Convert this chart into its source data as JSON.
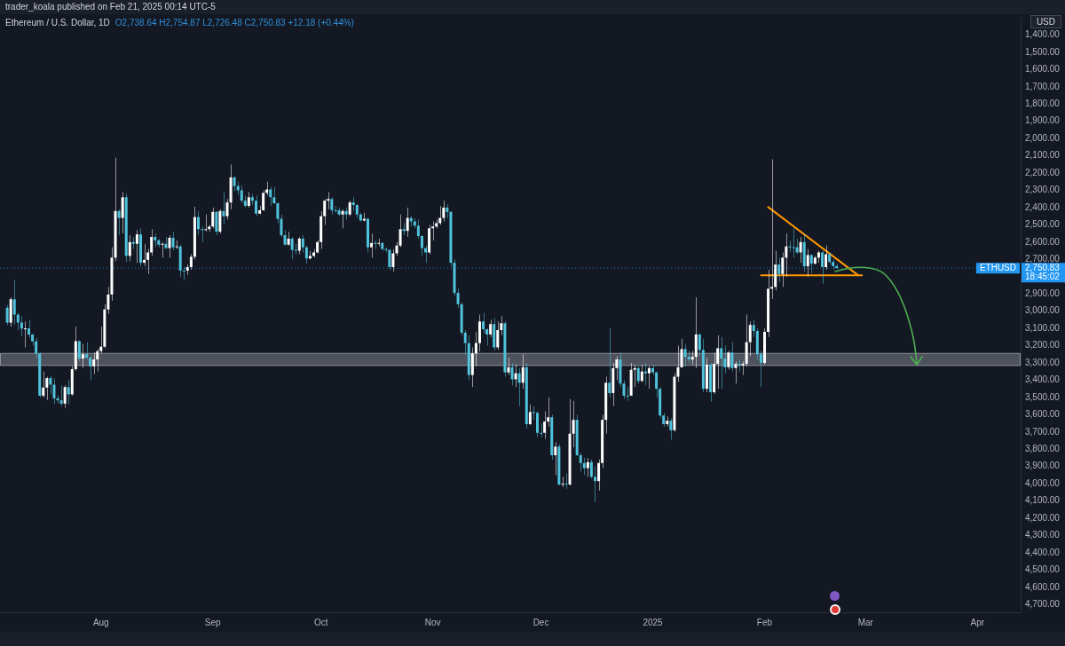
{
  "chart_data": {
    "type": "candlestick",
    "title": "Ethereum / U.S. Dollar, 1D",
    "subtitle": "O2,738.64 H2,754.87 L2,726.48 C2,750.83 +12.18 (+0.44%)",
    "ylabel": "USD",
    "annotations": [
      "trader_koala published on Feb 21, 2025 00:14 UTC-5",
      "2,750.83",
      "18:45:02"
    ],
    "x": [
      "2024-07-06",
      "2024-07-07",
      "2024-07-08",
      "2024-07-09",
      "2024-07-10",
      "2024-07-11",
      "2024-07-12",
      "2024-07-13",
      "2024-07-14",
      "2024-07-15",
      "2024-07-16",
      "2024-07-17",
      "2024-07-18",
      "2024-07-19",
      "2024-07-20",
      "2024-07-21",
      "2024-07-22",
      "2024-07-23",
      "2024-07-24",
      "2024-07-25",
      "2024-07-26",
      "2024-07-27",
      "2024-07-28",
      "2024-07-29",
      "2024-07-30",
      "2024-07-31",
      "2024-08-01",
      "2024-08-02",
      "2024-08-03",
      "2024-08-04",
      "2024-08-05",
      "2024-08-06",
      "2024-08-07",
      "2024-08-08",
      "2024-08-09",
      "2024-08-10",
      "2024-08-11",
      "2024-08-12",
      "2024-08-13",
      "2024-08-14",
      "2024-08-15",
      "2024-08-16",
      "2024-08-17",
      "2024-08-18",
      "2024-08-19",
      "2024-08-20",
      "2024-08-21",
      "2024-08-22",
      "2024-08-23",
      "2024-08-24",
      "2024-08-25",
      "2024-08-26",
      "2024-08-27",
      "2024-08-28",
      "2024-08-29",
      "2024-08-30",
      "2024-08-31",
      "2024-09-01",
      "2024-09-02",
      "2024-09-03",
      "2024-09-04",
      "2024-09-05",
      "2024-09-06",
      "2024-09-07",
      "2024-09-08",
      "2024-09-09",
      "2024-09-10",
      "2024-09-11",
      "2024-09-12",
      "2024-09-13",
      "2024-09-14",
      "2024-09-15",
      "2024-09-16",
      "2024-09-17",
      "2024-09-18",
      "2024-09-19",
      "2024-09-20",
      "2024-09-21",
      "2024-09-22",
      "2024-09-23",
      "2024-09-24",
      "2024-09-25",
      "2024-09-26",
      "2024-09-27",
      "2024-09-28",
      "2024-09-29",
      "2024-09-30",
      "2024-10-01",
      "2024-10-02",
      "2024-10-03",
      "2024-10-04",
      "2024-10-05",
      "2024-10-06",
      "2024-10-07",
      "2024-10-08",
      "2024-10-09",
      "2024-10-10",
      "2024-10-11",
      "2024-10-12",
      "2024-10-13",
      "2024-10-14",
      "2024-10-15",
      "2024-10-16",
      "2024-10-17",
      "2024-10-18",
      "2024-10-19",
      "2024-10-20",
      "2024-10-21",
      "2024-10-22",
      "2024-10-23",
      "2024-10-24",
      "2024-10-25",
      "2024-10-26",
      "2024-10-27",
      "2024-10-28",
      "2024-10-29",
      "2024-10-30",
      "2024-10-31",
      "2024-11-01",
      "2024-11-02",
      "2024-11-03",
      "2024-11-04",
      "2024-11-05",
      "2024-11-06",
      "2024-11-07",
      "2024-11-08",
      "2024-11-09",
      "2024-11-10",
      "2024-11-11",
      "2024-11-12",
      "2024-11-13",
      "2024-11-14",
      "2024-11-15",
      "2024-11-16",
      "2024-11-17",
      "2024-11-18",
      "2024-11-19",
      "2024-11-20",
      "2024-11-21",
      "2024-11-22",
      "2024-11-23",
      "2024-11-24",
      "2024-11-25",
      "2024-11-26",
      "2024-11-27",
      "2024-11-28",
      "2024-11-29",
      "2024-11-30",
      "2024-12-01",
      "2024-12-02",
      "2024-12-03",
      "2024-12-04",
      "2024-12-05",
      "2024-12-06",
      "2024-12-07",
      "2024-12-08",
      "2024-12-09",
      "2024-12-10",
      "2024-12-11",
      "2024-12-12",
      "2024-12-13",
      "2024-12-14",
      "2024-12-15",
      "2024-12-16",
      "2024-12-17",
      "2024-12-18",
      "2024-12-19",
      "2024-12-20",
      "2024-12-21",
      "2024-12-22",
      "2024-12-23",
      "2024-12-24",
      "2024-12-25",
      "2024-12-26",
      "2024-12-27",
      "2024-12-28",
      "2024-12-29",
      "2024-12-30",
      "2024-12-31",
      "2025-01-01",
      "2025-01-02",
      "2025-01-03",
      "2025-01-04",
      "2025-01-05",
      "2025-01-06",
      "2025-01-07",
      "2025-01-08",
      "2025-01-09",
      "2025-01-10",
      "2025-01-11",
      "2025-01-12",
      "2025-01-13",
      "2025-01-14",
      "2025-01-15",
      "2025-01-16",
      "2025-01-17",
      "2025-01-18",
      "2025-01-19",
      "2025-01-20",
      "2025-01-21",
      "2025-01-22",
      "2025-01-23",
      "2025-01-24",
      "2025-01-25",
      "2025-01-26",
      "2025-01-27",
      "2025-01-28",
      "2025-01-29",
      "2025-01-30",
      "2025-01-31",
      "2025-02-01",
      "2025-02-02",
      "2025-02-03",
      "2025-02-04",
      "2025-02-05",
      "2025-02-06",
      "2025-02-07",
      "2025-02-08",
      "2025-02-09",
      "2025-02-10",
      "2025-02-11",
      "2025-02-12",
      "2025-02-13",
      "2025-02-14",
      "2025-02-15",
      "2025-02-16",
      "2025-02-17",
      "2025-02-18",
      "2025-02-19",
      "2025-02-20",
      "2025-02-21"
    ],
    "ohlc": [
      [
        2980,
        3080,
        2965,
        3067
      ],
      [
        3067,
        3090,
        2920,
        2931
      ],
      [
        2931,
        3080,
        2820,
        3020
      ],
      [
        3020,
        3110,
        3010,
        3066
      ],
      [
        3066,
        3145,
        3030,
        3101
      ],
      [
        3101,
        3210,
        3060,
        3100
      ],
      [
        3100,
        3155,
        3050,
        3136
      ],
      [
        3136,
        3200,
        3130,
        3175
      ],
      [
        3175,
        3275,
        3155,
        3245
      ],
      [
        3245,
        3500,
        3240,
        3490
      ],
      [
        3490,
        3500,
        3350,
        3443
      ],
      [
        3443,
        3515,
        3380,
        3388
      ],
      [
        3388,
        3480,
        3375,
        3426
      ],
      [
        3426,
        3540,
        3390,
        3505
      ],
      [
        3505,
        3535,
        3490,
        3517
      ],
      [
        3517,
        3550,
        3430,
        3536
      ],
      [
        3536,
        3560,
        3430,
        3440
      ],
      [
        3440,
        3540,
        3400,
        3482
      ],
      [
        3482,
        3490,
        3320,
        3336
      ],
      [
        3336,
        3345,
        3090,
        3174
      ],
      [
        3174,
        3290,
        3170,
        3275
      ],
      [
        3275,
        3330,
        3190,
        3250
      ],
      [
        3250,
        3280,
        3180,
        3270
      ],
      [
        3270,
        3400,
        3260,
        3320
      ],
      [
        3320,
        3365,
        3240,
        3280
      ],
      [
        3280,
        3350,
        3220,
        3232
      ],
      [
        3232,
        3245,
        3090,
        3206
      ],
      [
        3206,
        3215,
        2960,
        2990
      ],
      [
        2990,
        3015,
        2860,
        2904
      ],
      [
        2904,
        2940,
        2630,
        2690
      ],
      [
        2690,
        2710,
        2111,
        2420
      ],
      [
        2420,
        2560,
        2410,
        2460
      ],
      [
        2460,
        2550,
        2310,
        2340
      ],
      [
        2340,
        2715,
        2320,
        2680
      ],
      [
        2680,
        2710,
        2560,
        2600
      ],
      [
        2600,
        2640,
        2570,
        2610
      ],
      [
        2610,
        2720,
        2530,
        2555
      ],
      [
        2555,
        2740,
        2520,
        2720
      ],
      [
        2720,
        2740,
        2610,
        2703
      ],
      [
        2703,
        2785,
        2640,
        2660
      ],
      [
        2660,
        2680,
        2525,
        2570
      ],
      [
        2570,
        2630,
        2550,
        2590
      ],
      [
        2590,
        2630,
        2580,
        2615
      ],
      [
        2615,
        2690,
        2600,
        2610
      ],
      [
        2610,
        2640,
        2570,
        2635
      ],
      [
        2635,
        2690,
        2560,
        2575
      ],
      [
        2575,
        2650,
        2540,
        2630
      ],
      [
        2630,
        2640,
        2590,
        2625
      ],
      [
        2625,
        2800,
        2615,
        2765
      ],
      [
        2765,
        2820,
        2745,
        2765
      ],
      [
        2765,
        2790,
        2730,
        2745
      ],
      [
        2745,
        2760,
        2670,
        2685
      ],
      [
        2685,
        2700,
        2395,
        2455
      ],
      [
        2455,
        2560,
        2420,
        2525
      ],
      [
        2525,
        2600,
        2510,
        2530
      ],
      [
        2530,
        2540,
        2440,
        2525
      ],
      [
        2525,
        2540,
        2500,
        2510
      ],
      [
        2510,
        2520,
        2400,
        2425
      ],
      [
        2425,
        2560,
        2420,
        2540
      ],
      [
        2540,
        2550,
        2410,
        2420
      ],
      [
        2420,
        2495,
        2310,
        2450
      ],
      [
        2450,
        2470,
        2350,
        2370
      ],
      [
        2370,
        2410,
        2150,
        2225
      ],
      [
        2225,
        2305,
        2220,
        2275
      ],
      [
        2275,
        2325,
        2250,
        2300
      ],
      [
        2300,
        2375,
        2270,
        2360
      ],
      [
        2360,
        2400,
        2330,
        2390
      ],
      [
        2390,
        2400,
        2310,
        2340
      ],
      [
        2340,
        2385,
        2320,
        2360
      ],
      [
        2360,
        2450,
        2330,
        2435
      ],
      [
        2435,
        2440,
        2390,
        2415
      ],
      [
        2415,
        2420,
        2300,
        2315
      ],
      [
        2315,
        2330,
        2250,
        2295
      ],
      [
        2295,
        2390,
        2280,
        2340
      ],
      [
        2340,
        2380,
        2280,
        2375
      ],
      [
        2375,
        2490,
        2370,
        2465
      ],
      [
        2465,
        2570,
        2440,
        2560
      ],
      [
        2560,
        2620,
        2530,
        2615
      ],
      [
        2615,
        2620,
        2540,
        2580
      ],
      [
        2580,
        2700,
        2570,
        2645
      ],
      [
        2645,
        2670,
        2610,
        2650
      ],
      [
        2650,
        2670,
        2570,
        2580
      ],
      [
        2580,
        2660,
        2560,
        2630
      ],
      [
        2630,
        2725,
        2620,
        2695
      ],
      [
        2695,
        2700,
        2650,
        2680
      ],
      [
        2680,
        2690,
        2640,
        2660
      ],
      [
        2660,
        2665,
        2590,
        2600
      ],
      [
        2600,
        2640,
        2420,
        2450
      ],
      [
        2450,
        2500,
        2350,
        2360
      ],
      [
        2360,
        2410,
        2310,
        2350
      ],
      [
        2350,
        2440,
        2340,
        2415
      ],
      [
        2415,
        2430,
        2390,
        2415
      ],
      [
        2415,
        2450,
        2400,
        2440
      ],
      [
        2440,
        2520,
        2410,
        2420
      ],
      [
        2420,
        2470,
        2400,
        2440
      ],
      [
        2440,
        2450,
        2360,
        2370
      ],
      [
        2370,
        2420,
        2340,
        2385
      ],
      [
        2385,
        2460,
        2380,
        2440
      ],
      [
        2440,
        2480,
        2430,
        2475
      ],
      [
        2475,
        2480,
        2430,
        2465
      ],
      [
        2465,
        2660,
        2460,
        2630
      ],
      [
        2630,
        2690,
        2550,
        2605
      ],
      [
        2605,
        2640,
        2590,
        2610
      ],
      [
        2610,
        2625,
        2580,
        2605
      ],
      [
        2605,
        2650,
        2600,
        2640
      ],
      [
        2640,
        2660,
        2630,
        2645
      ],
      [
        2645,
        2760,
        2640,
        2745
      ],
      [
        2745,
        2770,
        2640,
        2665
      ],
      [
        2665,
        2680,
        2600,
        2620
      ],
      [
        2620,
        2630,
        2440,
        2525
      ],
      [
        2525,
        2560,
        2490,
        2535
      ],
      [
        2535,
        2570,
        2400,
        2460
      ],
      [
        2460,
        2510,
        2450,
        2480
      ],
      [
        2480,
        2520,
        2460,
        2505
      ],
      [
        2505,
        2580,
        2470,
        2565
      ],
      [
        2565,
        2680,
        2560,
        2635
      ],
      [
        2635,
        2720,
        2620,
        2660
      ],
      [
        2660,
        2670,
        2500,
        2520
      ],
      [
        2520,
        2590,
        2480,
        2510
      ],
      [
        2510,
        2520,
        2470,
        2490
      ],
      [
        2490,
        2500,
        2390,
        2460
      ],
      [
        2460,
        2480,
        2360,
        2400
      ],
      [
        2400,
        2460,
        2380,
        2425
      ],
      [
        2425,
        2740,
        2420,
        2720
      ],
      [
        2720,
        2910,
        2700,
        2895
      ],
      [
        2895,
        2980,
        2870,
        2960
      ],
      [
        2960,
        3140,
        2950,
        3125
      ],
      [
        3125,
        3250,
        3110,
        3185
      ],
      [
        3185,
        3400,
        3140,
        3370
      ],
      [
        3370,
        3440,
        3210,
        3245
      ],
      [
        3245,
        3320,
        3120,
        3185
      ],
      [
        3185,
        3235,
        3020,
        3060
      ],
      [
        3060,
        3130,
        3010,
        3105
      ],
      [
        3105,
        3200,
        3100,
        3135
      ],
      [
        3135,
        3150,
        3050,
        3075
      ],
      [
        3075,
        3230,
        3040,
        3210
      ],
      [
        3210,
        3225,
        3060,
        3110
      ],
      [
        3110,
        3140,
        3030,
        3070
      ],
      [
        3070,
        3380,
        3060,
        3355
      ],
      [
        3355,
        3370,
        3270,
        3325
      ],
      [
        3325,
        3430,
        3300,
        3395
      ],
      [
        3395,
        3440,
        3310,
        3360
      ],
      [
        3360,
        3550,
        3330,
        3415
      ],
      [
        3415,
        3450,
        3250,
        3325
      ],
      [
        3325,
        3680,
        3300,
        3655
      ],
      [
        3655,
        3660,
        3540,
        3585
      ],
      [
        3585,
        3630,
        3550,
        3590
      ],
      [
        3590,
        3730,
        3580,
        3705
      ],
      [
        3705,
        3730,
        3650,
        3705
      ],
      [
        3705,
        3740,
        3580,
        3640
      ],
      [
        3640,
        3670,
        3500,
        3615
      ],
      [
        3615,
        3860,
        3600,
        3835
      ],
      [
        3835,
        3950,
        3760,
        3785
      ],
      [
        3785,
        4010,
        3770,
        4005
      ],
      [
        4005,
        4020,
        3960,
        4000
      ],
      [
        4000,
        4030,
        3940,
        4005
      ],
      [
        4005,
        4010,
        3510,
        3710
      ],
      [
        3710,
        3790,
        3520,
        3630
      ],
      [
        3630,
        3840,
        3600,
        3835
      ],
      [
        3835,
        3930,
        3820,
        3880
      ],
      [
        3880,
        3950,
        3850,
        3910
      ],
      [
        3910,
        3960,
        3850,
        3875
      ],
      [
        3875,
        3970,
        3860,
        3960
      ],
      [
        3960,
        4107,
        3900,
        3985
      ],
      [
        3985,
        4040,
        3860,
        3880
      ],
      [
        3880,
        3910,
        3600,
        3630
      ],
      [
        3630,
        3710,
        3380,
        3415
      ],
      [
        3415,
        3500,
        3100,
        3475
      ],
      [
        3475,
        3550,
        3300,
        3330
      ],
      [
        3330,
        3400,
        3260,
        3280
      ],
      [
        3280,
        3440,
        3240,
        3420
      ],
      [
        3420,
        3510,
        3400,
        3490
      ],
      [
        3490,
        3520,
        3440,
        3490
      ],
      [
        3490,
        3490,
        3300,
        3340
      ],
      [
        3340,
        3440,
        3310,
        3330
      ],
      [
        3330,
        3420,
        3320,
        3405
      ],
      [
        3405,
        3410,
        3310,
        3350
      ],
      [
        3350,
        3430,
        3300,
        3360
      ],
      [
        3360,
        3450,
        3320,
        3330
      ],
      [
        3330,
        3370,
        3310,
        3355
      ],
      [
        3355,
        3500,
        3350,
        3450
      ],
      [
        3450,
        3620,
        3440,
        3605
      ],
      [
        3605,
        3670,
        3590,
        3655
      ],
      [
        3655,
        3670,
        3610,
        3635
      ],
      [
        3635,
        3745,
        3620,
        3690
      ],
      [
        3690,
        3700,
        3360,
        3380
      ],
      [
        3380,
        3410,
        3200,
        3325
      ],
      [
        3325,
        3330,
        3160,
        3220
      ],
      [
        3220,
        3320,
        3190,
        3265
      ],
      [
        3265,
        3300,
        3230,
        3280
      ],
      [
        3280,
        3310,
        3230,
        3265
      ],
      [
        3265,
        3330,
        2920,
        3135
      ],
      [
        3135,
        3260,
        3130,
        3225
      ],
      [
        3225,
        3470,
        3160,
        3450
      ],
      [
        3450,
        3470,
        3270,
        3310
      ],
      [
        3310,
        3525,
        3300,
        3470
      ],
      [
        3470,
        3480,
        3240,
        3305
      ],
      [
        3305,
        3450,
        3140,
        3215
      ],
      [
        3215,
        3450,
        3150,
        3275
      ],
      [
        3275,
        3360,
        3200,
        3325
      ],
      [
        3325,
        3340,
        3230,
        3240
      ],
      [
        3240,
        3350,
        3180,
        3330
      ],
      [
        3330,
        3420,
        3290,
        3305
      ],
      [
        3305,
        3350,
        3280,
        3315
      ],
      [
        3315,
        3370,
        3290,
        3305
      ],
      [
        3305,
        3320,
        3020,
        3180
      ],
      [
        3180,
        3260,
        3060,
        3080
      ],
      [
        3080,
        3150,
        3050,
        3115
      ],
      [
        3115,
        3280,
        3100,
        3250
      ],
      [
        3250,
        3440,
        3230,
        3300
      ],
      [
        3300,
        3310,
        3100,
        3120
      ],
      [
        3120,
        3150,
        2760,
        2870
      ],
      [
        2870,
        2930,
        2120,
        2860
      ],
      [
        2860,
        2880,
        2650,
        2730
      ],
      [
        2730,
        2830,
        2690,
        2785
      ],
      [
        2785,
        2860,
        2660,
        2690
      ],
      [
        2690,
        2800,
        2550,
        2625
      ],
      [
        2625,
        2660,
        2590,
        2630
      ],
      [
        2630,
        2690,
        2520,
        2630
      ],
      [
        2630,
        2670,
        2580,
        2660
      ],
      [
        2660,
        2720,
        2570,
        2600
      ],
      [
        2600,
        2770,
        2550,
        2740
      ],
      [
        2740,
        2800,
        2640,
        2675
      ],
      [
        2675,
        2780,
        2670,
        2725
      ],
      [
        2725,
        2730,
        2680,
        2690
      ],
      [
        2690,
        2720,
        2650,
        2660
      ],
      [
        2660,
        2840,
        2650,
        2745
      ],
      [
        2745,
        2760,
        2620,
        2670
      ],
      [
        2670,
        2730,
        2660,
        2715
      ],
      [
        2715,
        2760,
        2700,
        2739
      ],
      [
        2738.64,
        2754.87,
        2726.48,
        2750.83
      ]
    ],
    "colors": [
      "#4fc3dc",
      "#ffffff",
      "#4fc3dc",
      "#4fc3dc",
      "#4fc3dc",
      "#ffffff",
      "#4fc3dc",
      "#4fc3dc",
      "#4fc3dc",
      "#4fc3dc",
      "#ffffff",
      "#ffffff",
      "#4fc3dc",
      "#4fc3dc",
      "#4fc3dc",
      "#4fc3dc",
      "#ffffff",
      "#4fc3dc",
      "#ffffff",
      "#ffffff",
      "#4fc3dc",
      "#ffffff",
      "#4fc3dc",
      "#4fc3dc",
      "#ffffff",
      "#ffffff",
      "#ffffff",
      "#ffffff",
      "#ffffff",
      "#ffffff",
      "#ffffff",
      "#4fc3dc",
      "#ffffff",
      "#4fc3dc",
      "#ffffff",
      "#4fc3dc",
      "#ffffff",
      "#4fc3dc",
      "#ffffff",
      "#ffffff",
      "#ffffff",
      "#4fc3dc",
      "#4fc3dc",
      "#ffffff",
      "#4fc3dc",
      "#ffffff",
      "#4fc3dc",
      "#ffffff",
      "#4fc3dc",
      "#4fc3dc",
      "#ffffff",
      "#ffffff",
      "#ffffff",
      "#4fc3dc",
      "#4fc3dc",
      "#ffffff",
      "#ffffff",
      "#ffffff",
      "#4fc3dc",
      "#ffffff",
      "#4fc3dc",
      "#ffffff",
      "#ffffff",
      "#4fc3dc",
      "#4fc3dc",
      "#4fc3dc",
      "#4fc3dc",
      "#ffffff",
      "#4fc3dc",
      "#4fc3dc",
      "#ffffff",
      "#ffffff",
      "#ffffff",
      "#4fc3dc",
      "#4fc3dc",
      "#4fc3dc",
      "#4fc3dc",
      "#4fc3dc",
      "#ffffff",
      "#4fc3dc",
      "#4fc3dc",
      "#ffffff",
      "#4fc3dc",
      "#4fc3dc",
      "#ffffff",
      "#ffffff",
      "#ffffff",
      "#ffffff",
      "#ffffff",
      "#ffffff",
      "#4fc3dc",
      "#4fc3dc",
      "#4fc3dc",
      "#ffffff",
      "#4fc3dc",
      "#ffffff",
      "#4fc3dc",
      "#4fc3dc",
      "#4fc3dc",
      "#ffffff",
      "#4fc3dc",
      "#ffffff",
      "#4fc3dc",
      "#ffffff",
      "#4fc3dc",
      "#4fc3dc",
      "#4fc3dc",
      "#ffffff",
      "#ffffff",
      "#ffffff",
      "#4fc3dc",
      "#ffffff",
      "#4fc3dc",
      "#4fc3dc",
      "#4fc3dc",
      "#4fc3dc",
      "#4fc3dc",
      "#ffffff",
      "#ffffff",
      "#ffffff",
      "#ffffff",
      "#ffffff",
      "#4fc3dc",
      "#4fc3dc",
      "#4fc3dc",
      "#4fc3dc",
      "#4fc3dc",
      "#4fc3dc",
      "#4fc3dc",
      "#ffffff",
      "#ffffff",
      "#ffffff",
      "#4fc3dc",
      "#4fc3dc",
      "#ffffff",
      "#4fc3dc",
      "#ffffff",
      "#ffffff",
      "#4fc3dc",
      "#ffffff",
      "#4fc3dc",
      "#ffffff",
      "#4fc3dc",
      "#ffffff",
      "#4fc3dc",
      "#ffffff",
      "#4fc3dc",
      "#4fc3dc",
      "#4fc3dc",
      "#ffffff",
      "#ffffff",
      "#4fc3dc",
      "#ffffff",
      "#4fc3dc",
      "#ffffff",
      "#4fc3dc",
      "#ffffff",
      "#ffffff",
      "#4fc3dc",
      "#4fc3dc",
      "#4fc3dc",
      "#ffffff",
      "#4fc3dc",
      "#4fc3dc",
      "#ffffff",
      "#ffffff",
      "#ffffff",
      "#4fc3dc",
      "#ffffff",
      "#ffffff",
      "#4fc3dc",
      "#4fc3dc",
      "#4fc3dc",
      "#ffffff",
      "#ffffff",
      "#4fc3dc",
      "#ffffff",
      "#4fc3dc",
      "#ffffff",
      "#4fc3dc",
      "#4fc3dc",
      "#4fc3dc",
      "#4fc3dc",
      "#ffffff",
      "#4fc3dc",
      "#ffffff",
      "#ffffff",
      "#ffffff",
      "#4fc3dc",
      "#4fc3dc",
      "#ffffff",
      "#ffffff",
      "#4fc3dc",
      "#4fc3dc",
      "#ffffff",
      "#4fc3dc",
      "#ffffff",
      "#ffffff",
      "#4fc3dc",
      "#4fc3dc",
      "#ffffff",
      "#4fc3dc",
      "#ffffff",
      "#4fc3dc",
      "#ffffff",
      "#ffffff",
      "#ffffff",
      "#4fc3dc",
      "#4fc3dc",
      "#4fc3dc",
      "#ffffff",
      "#ffffff",
      "#ffffff",
      "#ffffff",
      "#4fc3dc",
      "#ffffff",
      "#ffffff",
      "#4fc3dc",
      "#4fc3dc",
      "#4fc3dc",
      "#ffffff",
      "#4fc3dc",
      "#ffffff",
      "#4fc3dc",
      "#ffffff",
      "#ffffff",
      "#4fc3dc",
      "#ffffff",
      "#4fc3dc",
      "#4fc3dc",
      "#4fc3dc"
    ],
    "series": [
      {
        "type": "line",
        "color": "#ff9800",
        "x": [
          "2025-02-02",
          "2025-02-27"
        ],
        "values": [
          2397,
          2793
        ]
      },
      {
        "type": "line",
        "color": "#ff9800",
        "x": [
          "2025-01-31",
          "2025-02-28"
        ],
        "values": [
          2793,
          2793
        ]
      }
    ],
    "bands": [
      {
        "axis": "y",
        "from": 3245,
        "to": 3315,
        "color": "#9598a1"
      }
    ],
    "ref_lines": [
      {
        "axis": "y",
        "value": 2750.83,
        "label": "ETHUSD",
        "color": "#2196f3",
        "line_style": "dotted"
      }
    ],
    "xlim": [
      "2024-07-04",
      "2025-04-13"
    ],
    "xticks": [
      {
        "value": "2024-08-01",
        "label": "Aug"
      },
      {
        "value": "2024-09-01",
        "label": "Sep"
      },
      {
        "value": "2024-10-01",
        "label": "Oct"
      },
      {
        "value": "2024-11-01",
        "label": "Nov"
      },
      {
        "value": "2024-12-01",
        "label": "Dec"
      },
      {
        "value": "2025-01-01",
        "label": "2025"
      },
      {
        "value": "2025-02-01",
        "label": "Feb"
      },
      {
        "value": "2025-03-01",
        "label": "Mar"
      },
      {
        "value": "2025-04-01",
        "label": "Apr"
      }
    ],
    "ylim": [
      4745,
      1300
    ],
    "yticks": [
      {
        "value": 1400,
        "label": "1,400.00"
      },
      {
        "value": 1500,
        "label": "1,500.00"
      },
      {
        "value": 1600,
        "label": "1,600.00"
      },
      {
        "value": 1700,
        "label": "1,700.00"
      },
      {
        "value": 1800,
        "label": "1,800.00"
      },
      {
        "value": 1900,
        "label": "1,900.00"
      },
      {
        "value": 2000,
        "label": "2,000.00"
      },
      {
        "value": 2100,
        "label": "2,100.00"
      },
      {
        "value": 2200,
        "label": "2,200.00"
      },
      {
        "value": 2300,
        "label": "2,300.00"
      },
      {
        "value": 2400,
        "label": "2,400.00"
      },
      {
        "value": 2500,
        "label": "2,500.00"
      },
      {
        "value": 2600,
        "label": "2,600.00"
      },
      {
        "value": 2700,
        "label": "2,700.00"
      },
      {
        "value": 2900,
        "label": "2,900.00"
      },
      {
        "value": 3000,
        "label": "3,000.00"
      },
      {
        "value": 3100,
        "label": "3,100.00"
      },
      {
        "value": 3200,
        "label": "3,200.00"
      },
      {
        "value": 3300,
        "label": "3,300.00"
      },
      {
        "value": 3400,
        "label": "3,400.00"
      },
      {
        "value": 3500,
        "label": "3,500.00"
      },
      {
        "value": 3600,
        "label": "3,600.00"
      },
      {
        "value": 3700,
        "label": "3,700.00"
      },
      {
        "value": 3800,
        "label": "3,800.00"
      },
      {
        "value": 3900,
        "label": "3,900.00"
      },
      {
        "value": 4000,
        "label": "4,000.00"
      },
      {
        "value": 4100,
        "label": "4,100.00"
      },
      {
        "value": 4200,
        "label": "4,200.00"
      },
      {
        "value": 4300,
        "label": "4,300.00"
      },
      {
        "value": 4400,
        "label": "4,400.00"
      },
      {
        "value": 4500,
        "label": "4,500.00"
      },
      {
        "value": 4600,
        "label": "4,600.00"
      },
      {
        "value": 4700,
        "label": "4,700.00"
      }
    ],
    "grid": false,
    "legend": false,
    "marker": "none",
    "line_style": "solid"
  }
}
